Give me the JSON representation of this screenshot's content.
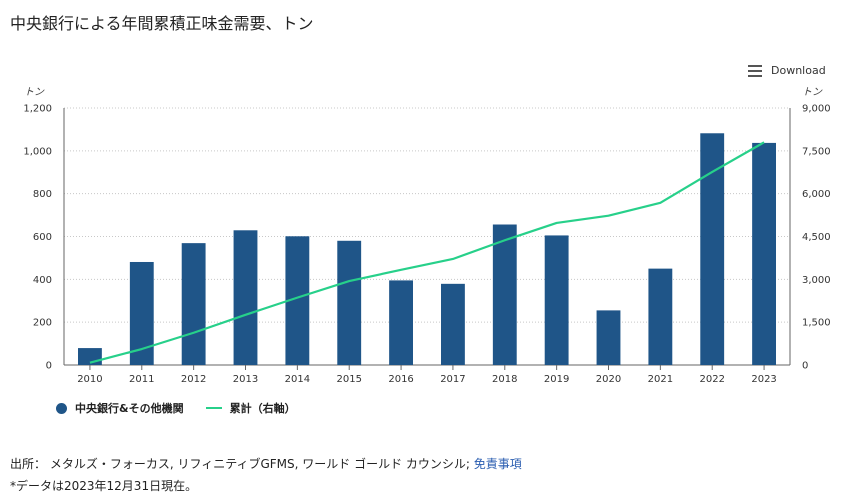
{
  "title": "中央銀行による年間累積正味金需要、トン",
  "download_label": "Download",
  "chart_data": {
    "type": "bar",
    "title": "中央銀行による年間累積正味金需要、トン",
    "categories": [
      "2010",
      "2011",
      "2012",
      "2013",
      "2014",
      "2015",
      "2016",
      "2017",
      "2018",
      "2019",
      "2020",
      "2021",
      "2022",
      "2023"
    ],
    "series": [
      {
        "name": "中央銀行&その他機関",
        "type": "bar",
        "axis": "left",
        "values": [
          79,
          481,
          569,
          629,
          601,
          580,
          395,
          379,
          656,
          605,
          255,
          450,
          1082,
          1037
        ]
      },
      {
        "name": "累計（右軸）",
        "type": "line",
        "axis": "right",
        "values": [
          79,
          560,
          1129,
          1758,
          2359,
          2939,
          3334,
          3713,
          4369,
          4974,
          5229,
          5679,
          6761,
          7798
        ]
      }
    ],
    "y_left": {
      "unit": "トン",
      "min": 0,
      "max": 1200,
      "ticks": [
        "0",
        "200",
        "400",
        "600",
        "800",
        "1,000",
        "1,200"
      ]
    },
    "y_right": {
      "unit": "トン",
      "min": 0,
      "max": 9000,
      "ticks": [
        "0",
        "1,500",
        "3,000",
        "4,500",
        "6,000",
        "7,500",
        "9,000"
      ]
    },
    "grid": true,
    "legend_position": "bottom-left",
    "colors": {
      "bar": "#1f5588",
      "line": "#27d08a",
      "grid": "#c8c8c8"
    }
  },
  "legend": [
    {
      "label": "中央銀行&その他機関",
      "color": "#1f5588",
      "shape": "dot"
    },
    {
      "label": "累計（右軸）",
      "color": "#27d08a",
      "shape": "line"
    }
  ],
  "footer": {
    "source_prefix": "出所： メタルズ・フォーカス, リフィニティブGFMS, ワールド ゴールド カウンシル; ",
    "source_link": "免責事項",
    "note": "*データは2023年12月31日現在。"
  }
}
